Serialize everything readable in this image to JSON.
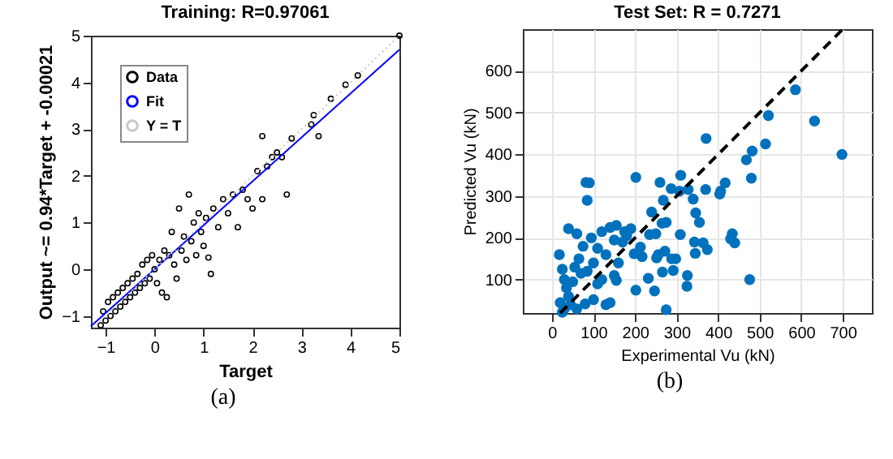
{
  "chart_data": [
    {
      "type": "scatter",
      "title": "Training: R=0.97061",
      "xlabel": "Target",
      "ylabel": "Output ~= 0.94*Target + -0.00021",
      "annotations": [
        "(a)"
      ],
      "xlim": [
        -1.3,
        5
      ],
      "ylim": [
        -1.25,
        5
      ],
      "xticks": [
        -1,
        0,
        1,
        2,
        3,
        4,
        5
      ],
      "yticks": [
        -1,
        0,
        1,
        2,
        3,
        4,
        5
      ],
      "legend": "top left",
      "series": [
        {
          "name": "Data",
          "type": "scatter",
          "marker": "circle",
          "color": "#000000",
          "x": [
            -1.1,
            -1.05,
            -1,
            -0.95,
            -0.9,
            -0.85,
            -0.8,
            -0.75,
            -0.7,
            -0.65,
            -0.6,
            -0.55,
            -0.5,
            -0.45,
            -0.4,
            -0.35,
            -0.3,
            -0.25,
            -0.2,
            -0.15,
            -0.1,
            -0.05,
            0,
            0.05,
            0.1,
            0.15,
            0.2,
            0.25,
            0.3,
            0.35,
            0.4,
            0.45,
            0.5,
            0.55,
            0.6,
            0.65,
            0.7,
            0.75,
            0.8,
            0.85,
            0.9,
            0.95,
            1.0,
            1.05,
            1.1,
            1.15,
            1.2,
            1.3,
            1.4,
            1.5,
            1.6,
            1.7,
            1.8,
            1.9,
            2.0,
            2.1,
            2.2,
            2.2,
            2.3,
            2.4,
            2.5,
            2.6,
            2.7,
            2.8,
            3.2,
            3.25,
            3.35,
            3.6,
            3.9,
            4.15,
            5
          ],
          "values": [
            -1.2,
            -0.9,
            -1.1,
            -0.7,
            -1.0,
            -0.6,
            -0.9,
            -0.5,
            -0.8,
            -0.4,
            -0.7,
            -0.3,
            -0.6,
            -0.2,
            -0.5,
            -0.1,
            -0.4,
            0.1,
            -0.3,
            0.2,
            -0.2,
            0.3,
            0,
            -0.3,
            0.2,
            -0.5,
            0.4,
            -0.6,
            0.3,
            0.8,
            0.1,
            -0.2,
            1.3,
            0.4,
            0.7,
            0.2,
            1.6,
            0.6,
            1.0,
            0.3,
            1.2,
            0.8,
            0.5,
            1.1,
            0.25,
            -0.1,
            1.3,
            0.9,
            1.5,
            1.2,
            1.6,
            0.9,
            1.7,
            1.5,
            1.3,
            2.1,
            2.85,
            1.5,
            2.2,
            2.4,
            2.5,
            2.4,
            1.6,
            2.8,
            3.1,
            3.3,
            2.85,
            3.65,
            3.95,
            4.15,
            5.0
          ]
        },
        {
          "name": "Fit",
          "type": "line",
          "marker": "none",
          "color": "#0000ff",
          "line_style": "solid",
          "x": [
            -1.3,
            5
          ],
          "values": [
            -1.22,
            4.7
          ]
        },
        {
          "name": "Y = T",
          "type": "line",
          "marker": "none",
          "color": "#c8c8c8",
          "line_style": "dotted",
          "x": [
            -1.25,
            5
          ],
          "values": [
            -1.25,
            5
          ]
        }
      ]
    },
    {
      "type": "scatter",
      "title": "Test Set: R = 0.7271",
      "xlabel": "Experimental Vu (kN)",
      "ylabel": "Predicted Vu (kN)",
      "annotations": [
        "(b)"
      ],
      "xlim": [
        -70,
        770
      ],
      "ylim": [
        20,
        700
      ],
      "xticks": [
        0,
        100,
        200,
        300,
        400,
        500,
        600,
        700
      ],
      "yticks": [
        100,
        200,
        300,
        400,
        500,
        600
      ],
      "grid": true,
      "series": [
        {
          "type": "scatter",
          "marker": "circle",
          "color": "#0072bd",
          "x": [
            586,
            632,
            698,
            521,
            514,
            482,
            468,
            480,
            476,
            371,
            406,
            417,
            404,
            370,
            346,
            355,
            340,
            328,
            310,
            287,
            307,
            268,
            260,
            202,
            82,
            90,
            85,
            240,
            275,
            265,
            250,
            235,
            309,
            434,
            430,
            440,
            374,
            343,
            364,
            345,
            298,
            288,
            272,
            256,
            252,
            213,
            217,
            198,
            232,
            247,
            202,
            266,
            292,
            326,
            325,
            275,
            155,
            140,
            100,
            80,
            40,
            60,
            75,
            95,
            120,
            140,
            155,
            175,
            190,
            18,
            25,
            30,
            35,
            40,
            50,
            55,
            65,
            70,
            85,
            100,
            110,
            120,
            130,
            150,
            160,
            170,
            180,
            20,
            30,
            45,
            60,
            25,
            110,
            130,
            150
          ],
          "values": [
            555,
            480,
            400,
            493,
            425,
            408,
            387,
            343,
            100,
            438,
            312,
            332,
            305,
            316,
            260,
            237,
            293,
            316,
            350,
            318,
            312,
            290,
            333,
            345,
            333,
            332,
            290,
            262,
            237,
            235,
            210,
            208,
            208,
            210,
            198,
            188,
            172,
            190,
            188,
            163,
            150,
            150,
            168,
            160,
            152,
            178,
            155,
            162,
            103,
            73,
            75,
            118,
            122,
            110,
            84,
            28,
            98,
            45,
            52,
            42,
            222,
            210,
            180,
            200,
            215,
            225,
            230,
            215,
            222,
            160,
            125,
            100,
            80,
            60,
            95,
            130,
            150,
            115,
            120,
            140,
            175,
            100,
            160,
            195,
            140,
            190,
            205,
            45,
            30,
            40,
            30,
            22,
            90,
            40,
            110
          ]
        },
        {
          "type": "line",
          "marker": "none",
          "color": "#000000",
          "line_style": "dashed",
          "x": [
            20,
            700
          ],
          "values": [
            20,
            700
          ]
        }
      ]
    }
  ]
}
